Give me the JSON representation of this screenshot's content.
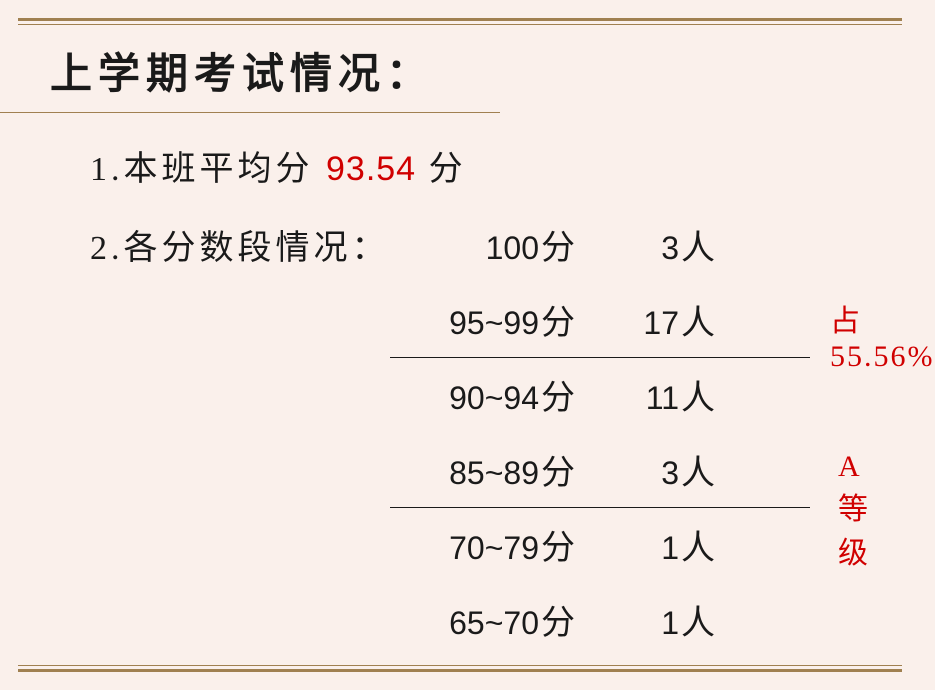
{
  "colors": {
    "background": "#faf0eb",
    "text": "#1a1a1a",
    "highlight": "#d00000",
    "border": "#a08050"
  },
  "typography": {
    "title_fontsize": 42,
    "body_fontsize": 34,
    "annotation_fontsize": 30,
    "chinese_font": "KaiTi",
    "number_font": "Arial"
  },
  "title": "上学期考试情况：",
  "line1": {
    "prefix": "1.本班平均分 ",
    "avg_score": "93.54",
    "suffix": " 分"
  },
  "line2_label": "2.各分数段情况：",
  "score_rows": [
    {
      "range": "100",
      "range_unit": "分",
      "count": "3",
      "count_unit": "人",
      "divider": false
    },
    {
      "range": "95~99",
      "range_unit": "分",
      "count": "17",
      "count_unit": "人",
      "divider": true
    },
    {
      "range": "90~94",
      "range_unit": "分",
      "count": "11",
      "count_unit": "人",
      "divider": false
    },
    {
      "range": "85~89",
      "range_unit": "分",
      "count": "3",
      "count_unit": "人",
      "divider": true
    },
    {
      "range": "70~79",
      "range_unit": "分",
      "count": "1",
      "count_unit": "人",
      "divider": false
    },
    {
      "range": "65~70",
      "range_unit": "分",
      "count": "1",
      "count_unit": "人",
      "divider": false
    }
  ],
  "annotations": [
    {
      "text": "占55.56%",
      "class": "annotation1"
    },
    {
      "text": "A等级",
      "class": "annotation2"
    }
  ]
}
